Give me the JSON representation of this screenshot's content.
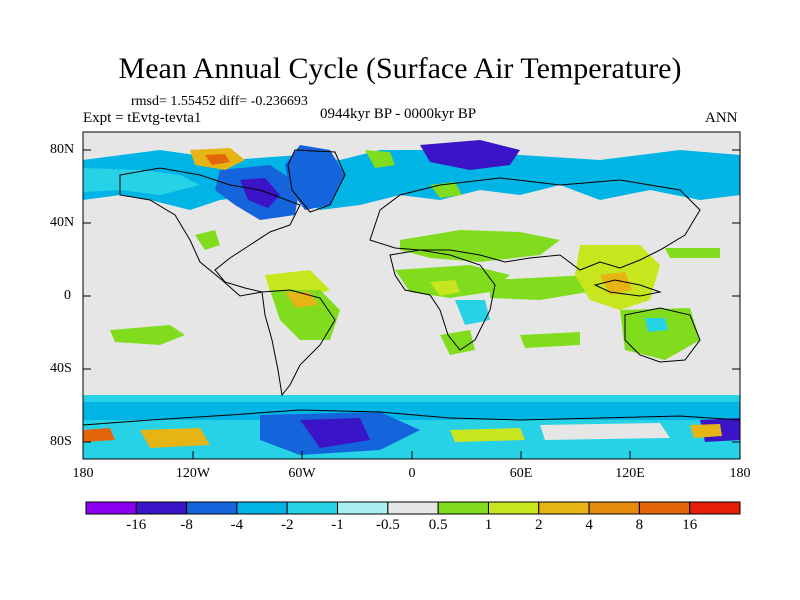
{
  "title": "Mean Annual Cycle (Surface Air Temperature)",
  "stats": "rmsd= 1.55452 diff= -0.236693",
  "expt": "Expt = tEvtg-tevta1",
  "period": "0944kyr BP - 0000kyr BP",
  "season": "ANN",
  "lat_labels": [
    "80N",
    "40N",
    "0",
    "40S",
    "80S"
  ],
  "lon_labels": [
    "180",
    "120W",
    "60W",
    "0",
    "60E",
    "120E",
    "180"
  ],
  "colorbar": {
    "levels": [
      "-16",
      "-8",
      "-4",
      "-2",
      "-1",
      "-0.5",
      "0.5",
      "1",
      "2",
      "4",
      "8",
      "16"
    ],
    "colors": [
      "#8c00f0",
      "#3c14c8",
      "#1464dc",
      "#00b4e6",
      "#28d2e6",
      "#aaf0f0",
      "#e6e6e6",
      "#82dc1e",
      "#c8e61e",
      "#e6b414",
      "#e68c0a",
      "#e6640a",
      "#e61e0a"
    ]
  },
  "map_colors": {
    "ocean": "#e6e6e6",
    "strong_cool": "#3c14c8",
    "cool": "#1464dc",
    "mild_cool": "#00b4e6",
    "weak_cool": "#28d2e6",
    "weak_warm": "#82dc1e",
    "warm": "#c8e61e",
    "hot": "#e6b414",
    "very_hot": "#e6640a"
  }
}
